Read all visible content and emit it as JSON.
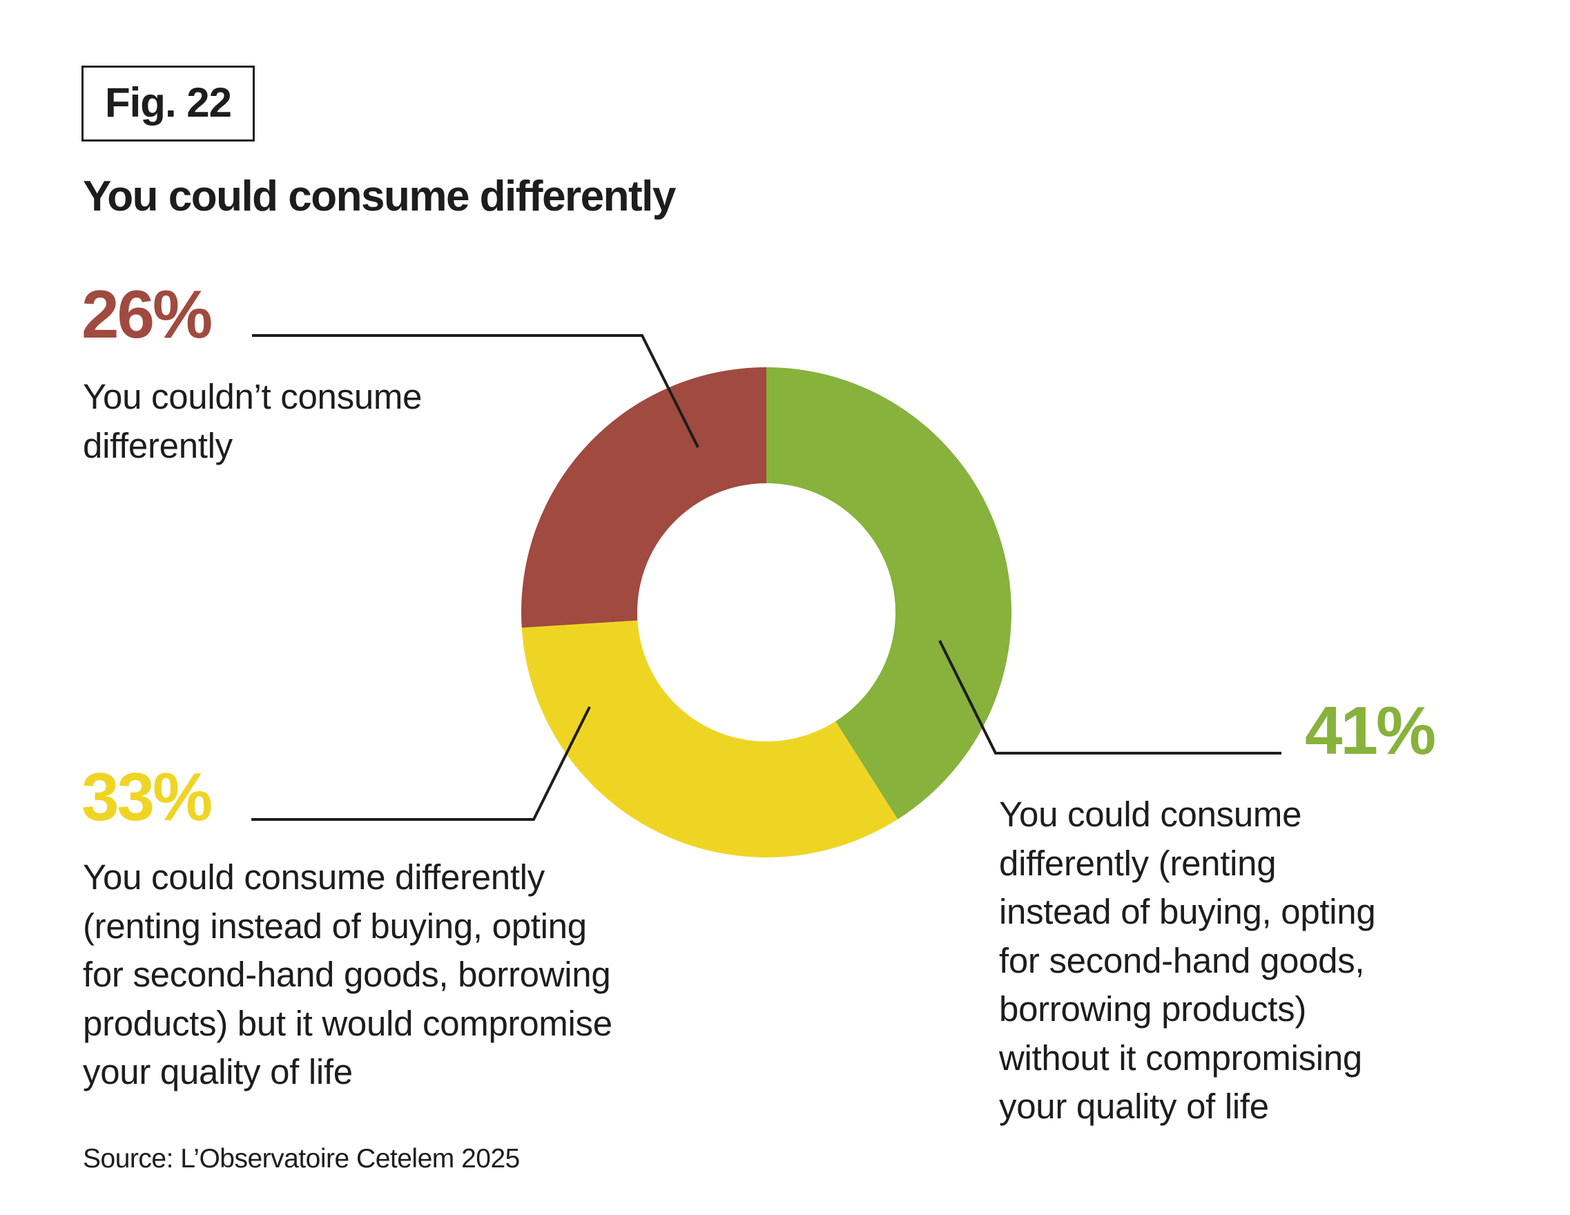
{
  "figure_label": "Fig. 22",
  "chart_data": {
    "type": "pie",
    "variant": "donut",
    "title": "You could consume differently",
    "start": "12 o'clock, clockwise",
    "slices": [
      {
        "label": "You could consume differently (renting instead of buying, opting for second-hand goods, borrowing products) without it compromising your quality of life",
        "value": 41,
        "display": "41%",
        "color": "#87b23b"
      },
      {
        "label": "You could consume differently (renting instead of buying, opting for second-hand goods, borrowing products) but it would compromise your quality of life",
        "value": 33,
        "display": "33%",
        "color": "#efd523"
      },
      {
        "label": "You couldn’t consume differently",
        "value": 26,
        "display": "26%",
        "color": "#a04a40"
      }
    ],
    "label_lines": {
      "s0": "You could consume\ndifferently (renting\ninstead of buying, opting\nfor second-hand goods,\nborrowing products)\nwithout it compromising\nyour quality of life",
      "s1": "You could consume differently\n(renting instead of buying, opting\nfor second-hand goods, borrowing\nproducts) but it would compromise\nyour quality of life",
      "s2": "You couldn’t consume\ndifferently"
    },
    "leader_line_color": "#1d1d1b"
  },
  "source": "Source: L’Observatoire Cetelem 2025"
}
